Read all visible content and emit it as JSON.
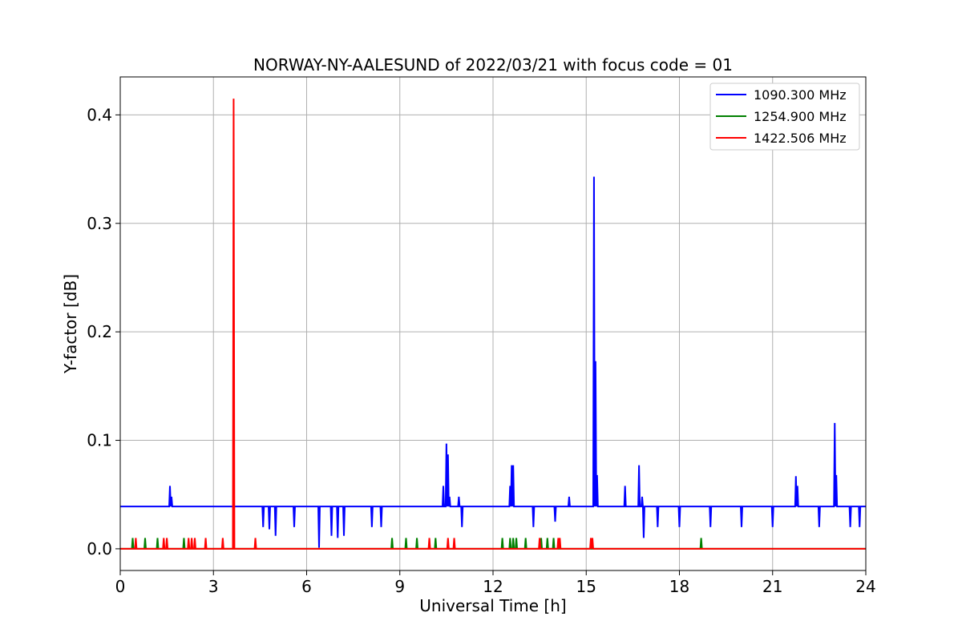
{
  "chart_data": {
    "type": "line",
    "title": "NORWAY-NY-AALESUND of 2022/03/21 with focus code = 01",
    "xlabel": "Universal Time [h]",
    "ylabel": "Y-factor [dB]",
    "xlim": [
      0,
      24
    ],
    "ylim": [
      -0.02,
      0.435
    ],
    "xticks": [
      0,
      3,
      6,
      9,
      12,
      15,
      18,
      21,
      24
    ],
    "xtick_labels": [
      "0",
      "3",
      "6",
      "9",
      "12",
      "15",
      "18",
      "21",
      "24"
    ],
    "yticks": [
      0.0,
      0.1,
      0.2,
      0.3,
      0.4
    ],
    "ytick_labels": [
      "0.0",
      "0.1",
      "0.2",
      "0.3",
      "0.4"
    ],
    "grid": true,
    "legend_position": "top-right",
    "series": [
      {
        "name": "1090.300 MHz",
        "color": "#0000ff",
        "baseline": 0.039,
        "spikes": [
          [
            1.6,
            0.058
          ],
          [
            1.65,
            0.048
          ],
          [
            4.6,
            0.02
          ],
          [
            4.8,
            0.018
          ],
          [
            5.0,
            0.012
          ],
          [
            5.6,
            0.02
          ],
          [
            6.4,
            0.001
          ],
          [
            6.8,
            0.012
          ],
          [
            7.0,
            0.01
          ],
          [
            7.2,
            0.012
          ],
          [
            8.1,
            0.02
          ],
          [
            8.4,
            0.02
          ],
          [
            10.4,
            0.058
          ],
          [
            10.5,
            0.097
          ],
          [
            10.55,
            0.087
          ],
          [
            10.6,
            0.048
          ],
          [
            10.9,
            0.048
          ],
          [
            11.0,
            0.02
          ],
          [
            12.55,
            0.058
          ],
          [
            12.6,
            0.077
          ],
          [
            12.65,
            0.077
          ],
          [
            13.3,
            0.02
          ],
          [
            14.0,
            0.025
          ],
          [
            14.45,
            0.048
          ],
          [
            15.25,
            0.343
          ],
          [
            15.3,
            0.173
          ],
          [
            15.35,
            0.068
          ],
          [
            16.25,
            0.058
          ],
          [
            16.7,
            0.077
          ],
          [
            16.8,
            0.048
          ],
          [
            16.85,
            0.01
          ],
          [
            17.3,
            0.02
          ],
          [
            18.0,
            0.02
          ],
          [
            19.0,
            0.02
          ],
          [
            20.0,
            0.02
          ],
          [
            21.0,
            0.02
          ],
          [
            21.75,
            0.067
          ],
          [
            21.8,
            0.058
          ],
          [
            22.5,
            0.02
          ],
          [
            23.0,
            0.116
          ],
          [
            23.05,
            0.068
          ],
          [
            23.5,
            0.02
          ],
          [
            23.8,
            0.02
          ]
        ]
      },
      {
        "name": "1254.900 MHz",
        "color": "#008000",
        "baseline": 0.0,
        "spikes": [
          [
            0.4,
            0.01
          ],
          [
            0.8,
            0.01
          ],
          [
            1.2,
            0.01
          ],
          [
            2.05,
            0.01
          ],
          [
            8.75,
            0.01
          ],
          [
            9.2,
            0.01
          ],
          [
            9.55,
            0.01
          ],
          [
            10.15,
            0.01
          ],
          [
            12.3,
            0.01
          ],
          [
            12.55,
            0.01
          ],
          [
            12.65,
            0.01
          ],
          [
            12.75,
            0.01
          ],
          [
            13.05,
            0.01
          ],
          [
            13.55,
            0.01
          ],
          [
            13.75,
            0.01
          ],
          [
            13.95,
            0.01
          ],
          [
            18.7,
            0.01
          ]
        ]
      },
      {
        "name": "1422.506 MHz",
        "color": "#ff0000",
        "baseline": 0.0,
        "spikes": [
          [
            0.5,
            0.01
          ],
          [
            1.4,
            0.01
          ],
          [
            1.5,
            0.01
          ],
          [
            2.2,
            0.01
          ],
          [
            2.3,
            0.01
          ],
          [
            2.4,
            0.01
          ],
          [
            2.75,
            0.01
          ],
          [
            3.3,
            0.01
          ],
          [
            3.65,
            0.415
          ],
          [
            4.35,
            0.01
          ],
          [
            9.95,
            0.01
          ],
          [
            10.55,
            0.01
          ],
          [
            10.75,
            0.01
          ],
          [
            13.5,
            0.01
          ],
          [
            14.1,
            0.01
          ],
          [
            14.15,
            0.01
          ],
          [
            15.15,
            0.01
          ],
          [
            15.2,
            0.01
          ]
        ]
      }
    ]
  }
}
